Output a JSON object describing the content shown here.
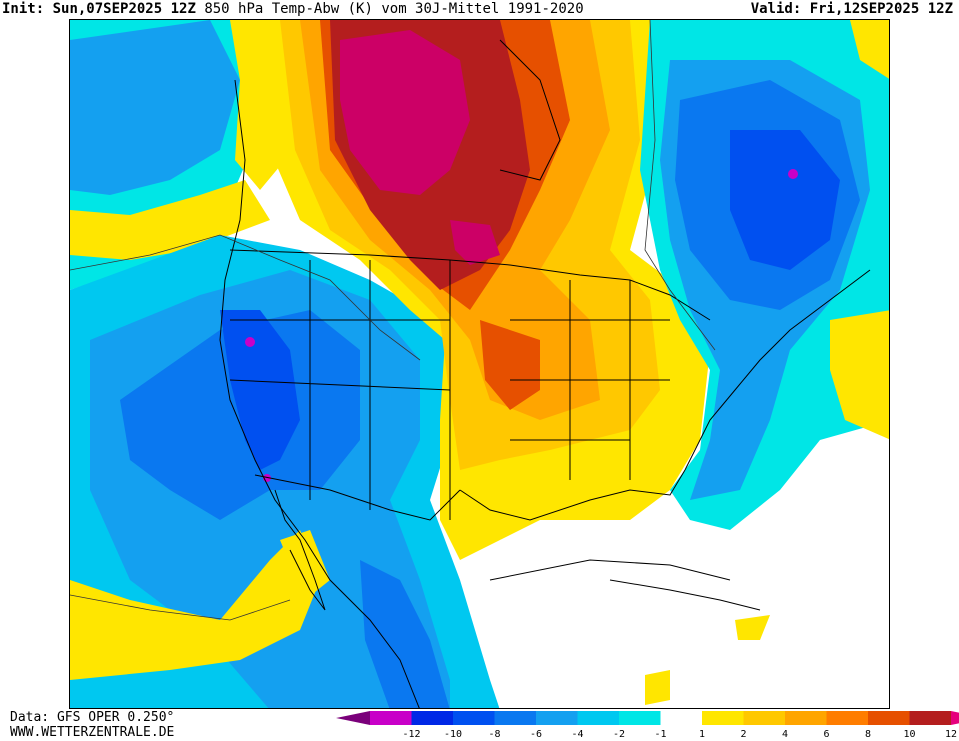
{
  "header": {
    "init_label": "Init:",
    "init_value": "Sun,07SEP2025 12Z",
    "title": "850 hPa Temp-Abw (K) vom 30J-Mittel 1991-2020",
    "valid_label": "Valid:",
    "valid_value": "Fri,12SEP2025 12Z"
  },
  "footer": {
    "data_line": "Data: GFS OPER 0.250°",
    "site": "WWW.WETTERZENTRALE.DE"
  },
  "legend": {
    "ticks": [
      "-12",
      "-10",
      "-8",
      "-6",
      "-4",
      "-2",
      "-1",
      "1",
      "2",
      "4",
      "6",
      "8",
      "10",
      "12"
    ],
    "colors": [
      "#7a007a",
      "#c800c8",
      "#0028e6",
      "#0050f0",
      "#0a78f0",
      "#14a0f0",
      "#00c8f0",
      "#00e6e6",
      "#ffffff",
      "#ffe600",
      "#ffc800",
      "#ffa500",
      "#ff7d00",
      "#e65000",
      "#b41e1e",
      "#e6007d"
    ]
  },
  "colors": {
    "cold_deep": "#0028e6",
    "cold_mid": "#0a78f0",
    "cold_light": "#14a0f0",
    "cold_edge": "#00e6e6",
    "warm_light": "#ffe600",
    "warm_mid": "#ffc800",
    "warm_orange": "#ffa500",
    "warm_dark": "#e65000",
    "warm_red": "#b41e1e",
    "extreme_warm": "#cc0066",
    "extreme_cold": "#c800c8"
  }
}
